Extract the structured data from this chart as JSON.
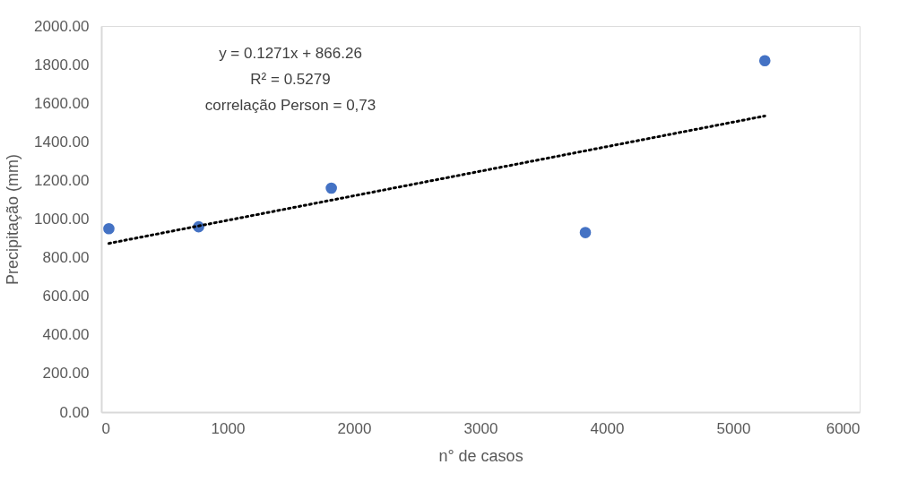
{
  "chart_data": {
    "type": "scatter",
    "xlabel": "n° de casos",
    "ylabel": "Precipitação (mm)",
    "xlim": [
      0,
      6000
    ],
    "xticks": [
      0,
      1000,
      2000,
      3000,
      4000,
      5000,
      6000
    ],
    "ylim": [
      0,
      2000
    ],
    "yticks": [
      {
        "value": 0,
        "label": "0.00"
      },
      {
        "value": 200,
        "label": "200.00"
      },
      {
        "value": 400,
        "label": "400.00"
      },
      {
        "value": 600,
        "label": "600.00"
      },
      {
        "value": 800,
        "label": "800.00"
      },
      {
        "value": 1000,
        "label": "1000.00"
      },
      {
        "value": 1200,
        "label": "1200.00"
      },
      {
        "value": 1400,
        "label": "1400.00"
      },
      {
        "value": 1600,
        "label": "1600.00"
      },
      {
        "value": 1800,
        "label": "1800.00"
      },
      {
        "value": 2000,
        "label": "2000.00"
      }
    ],
    "grid": false,
    "marker": "circle",
    "series": [
      {
        "color": "#4472c4",
        "x": [
          60,
          770,
          1820,
          3830,
          5250
        ],
        "values": [
          950,
          960,
          1160,
          930,
          1820
        ]
      },
      {
        "type": "line",
        "color": "#000000",
        "line_style": "dotted",
        "marker": "none",
        "x": [
          60,
          5250
        ],
        "values": [
          874,
          1534
        ]
      }
    ],
    "annotations": [
      "y = 0.1271x + 866.26",
      "R² = 0.5279",
      "correlação Person = 0,73"
    ]
  }
}
